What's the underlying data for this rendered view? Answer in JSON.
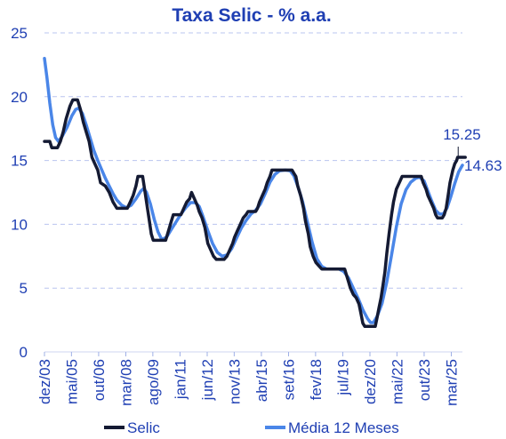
{
  "chart_data": {
    "type": "line",
    "title": "Taxa Selic - % a.a.",
    "ylim": [
      0,
      25
    ],
    "yticks": [
      "0",
      "5",
      "10",
      "15",
      "20",
      "25"
    ],
    "xlim": [
      2003.92,
      2025.75
    ],
    "grid": true,
    "legend_placement": "bottom",
    "x_ticks": [
      {
        "label": "dez/03",
        "x": 2003.92
      },
      {
        "label": "mai/05",
        "x": 2005.33
      },
      {
        "label": "out/06",
        "x": 2006.75
      },
      {
        "label": "mar/08",
        "x": 2008.17
      },
      {
        "label": "ago/09",
        "x": 2009.58
      },
      {
        "label": "jan/11",
        "x": 2011.0
      },
      {
        "label": "jun/12",
        "x": 2012.42
      },
      {
        "label": "nov/13",
        "x": 2013.83
      },
      {
        "label": "abr/15",
        "x": 2015.25
      },
      {
        "label": "set/16",
        "x": 2016.67
      },
      {
        "label": "fev/18",
        "x": 2018.08
      },
      {
        "label": "jul/19",
        "x": 2019.5
      },
      {
        "label": "dez/20",
        "x": 2020.92
      },
      {
        "label": "mai/22",
        "x": 2022.33
      },
      {
        "label": "out/23",
        "x": 2023.75
      },
      {
        "label": "mar/25",
        "x": 2025.17
      }
    ],
    "series": [
      {
        "name": "Selic",
        "color": "#141a33",
        "points": [
          [
            2003.92,
            16.5
          ],
          [
            2004.2,
            16.5
          ],
          [
            2004.3,
            16.0
          ],
          [
            2004.6,
            16.0
          ],
          [
            2004.75,
            16.5
          ],
          [
            2004.9,
            17.25
          ],
          [
            2005.05,
            18.25
          ],
          [
            2005.25,
            19.25
          ],
          [
            2005.4,
            19.75
          ],
          [
            2005.65,
            19.75
          ],
          [
            2005.8,
            19.0
          ],
          [
            2005.95,
            18.0
          ],
          [
            2006.1,
            17.25
          ],
          [
            2006.25,
            16.5
          ],
          [
            2006.4,
            15.25
          ],
          [
            2006.55,
            14.75
          ],
          [
            2006.7,
            14.25
          ],
          [
            2006.85,
            13.25
          ],
          [
            2007.1,
            13.0
          ],
          [
            2007.3,
            12.5
          ],
          [
            2007.5,
            11.75
          ],
          [
            2007.7,
            11.25
          ],
          [
            2008.25,
            11.25
          ],
          [
            2008.4,
            11.75
          ],
          [
            2008.55,
            12.25
          ],
          [
            2008.7,
            13.0
          ],
          [
            2008.8,
            13.75
          ],
          [
            2009.05,
            13.75
          ],
          [
            2009.15,
            12.75
          ],
          [
            2009.3,
            11.25
          ],
          [
            2009.4,
            10.25
          ],
          [
            2009.5,
            9.25
          ],
          [
            2009.6,
            8.75
          ],
          [
            2010.25,
            8.75
          ],
          [
            2010.4,
            9.5
          ],
          [
            2010.55,
            10.25
          ],
          [
            2010.65,
            10.75
          ],
          [
            2011.05,
            10.75
          ],
          [
            2011.2,
            11.25
          ],
          [
            2011.35,
            11.75
          ],
          [
            2011.5,
            12.0
          ],
          [
            2011.6,
            12.5
          ],
          [
            2011.75,
            12.0
          ],
          [
            2011.9,
            11.5
          ],
          [
            2012.0,
            11.0
          ],
          [
            2012.15,
            10.5
          ],
          [
            2012.3,
            9.75
          ],
          [
            2012.45,
            8.5
          ],
          [
            2012.6,
            8.0
          ],
          [
            2012.75,
            7.5
          ],
          [
            2012.9,
            7.25
          ],
          [
            2013.3,
            7.25
          ],
          [
            2013.45,
            7.5
          ],
          [
            2013.6,
            8.0
          ],
          [
            2013.75,
            8.5
          ],
          [
            2013.85,
            9.0
          ],
          [
            2014.0,
            9.5
          ],
          [
            2014.15,
            10.0
          ],
          [
            2014.3,
            10.5
          ],
          [
            2014.45,
            10.75
          ],
          [
            2014.55,
            11.0
          ],
          [
            2014.95,
            11.0
          ],
          [
            2015.05,
            11.25
          ],
          [
            2015.15,
            11.75
          ],
          [
            2015.3,
            12.25
          ],
          [
            2015.45,
            12.75
          ],
          [
            2015.55,
            13.25
          ],
          [
            2015.7,
            13.75
          ],
          [
            2015.8,
            14.25
          ],
          [
            2016.85,
            14.25
          ],
          [
            2016.95,
            14.0
          ],
          [
            2017.05,
            13.75
          ],
          [
            2017.15,
            13.0
          ],
          [
            2017.3,
            12.25
          ],
          [
            2017.45,
            11.25
          ],
          [
            2017.55,
            10.25
          ],
          [
            2017.7,
            9.25
          ],
          [
            2017.8,
            8.25
          ],
          [
            2017.95,
            7.5
          ],
          [
            2018.1,
            7.0
          ],
          [
            2018.25,
            6.75
          ],
          [
            2018.4,
            6.5
          ],
          [
            2019.6,
            6.5
          ],
          [
            2019.7,
            6.0
          ],
          [
            2019.8,
            5.5
          ],
          [
            2019.9,
            5.0
          ],
          [
            2020.05,
            4.5
          ],
          [
            2020.2,
            4.25
          ],
          [
            2020.35,
            3.75
          ],
          [
            2020.45,
            3.0
          ],
          [
            2020.55,
            2.25
          ],
          [
            2020.65,
            2.0
          ],
          [
            2021.2,
            2.0
          ],
          [
            2021.3,
            2.75
          ],
          [
            2021.4,
            3.5
          ],
          [
            2021.5,
            4.25
          ],
          [
            2021.6,
            5.25
          ],
          [
            2021.7,
            6.25
          ],
          [
            2021.8,
            7.75
          ],
          [
            2021.92,
            9.25
          ],
          [
            2022.05,
            10.75
          ],
          [
            2022.15,
            11.75
          ],
          [
            2022.3,
            12.75
          ],
          [
            2022.45,
            13.25
          ],
          [
            2022.6,
            13.75
          ],
          [
            2023.6,
            13.75
          ],
          [
            2023.7,
            13.25
          ],
          [
            2023.85,
            12.75
          ],
          [
            2023.95,
            12.25
          ],
          [
            2024.1,
            11.75
          ],
          [
            2024.25,
            11.25
          ],
          [
            2024.35,
            10.75
          ],
          [
            2024.45,
            10.5
          ],
          [
            2024.7,
            10.5
          ],
          [
            2024.8,
            10.75
          ],
          [
            2024.9,
            11.25
          ],
          [
            2025.0,
            12.25
          ],
          [
            2025.1,
            13.25
          ],
          [
            2025.25,
            14.25
          ],
          [
            2025.35,
            14.75
          ],
          [
            2025.45,
            15.0
          ],
          [
            2025.5,
            15.25
          ],
          [
            2025.9,
            15.25
          ]
        ]
      },
      {
        "name": "Média 12 Meses",
        "color": "#4a86e8",
        "points": [
          [
            2003.92,
            23.0
          ],
          [
            2004.05,
            21.5
          ],
          [
            2004.2,
            19.5
          ],
          [
            2004.35,
            17.8
          ],
          [
            2004.5,
            16.8
          ],
          [
            2004.65,
            16.5
          ],
          [
            2004.85,
            16.9
          ],
          [
            2005.1,
            17.6
          ],
          [
            2005.35,
            18.5
          ],
          [
            2005.55,
            19.0
          ],
          [
            2005.7,
            19.1
          ],
          [
            2005.9,
            18.7
          ],
          [
            2006.1,
            17.8
          ],
          [
            2006.3,
            16.8
          ],
          [
            2006.5,
            15.8
          ],
          [
            2006.7,
            15.0
          ],
          [
            2006.9,
            14.3
          ],
          [
            2007.1,
            13.6
          ],
          [
            2007.3,
            13.0
          ],
          [
            2007.5,
            12.4
          ],
          [
            2007.7,
            11.9
          ],
          [
            2007.95,
            11.5
          ],
          [
            2008.2,
            11.3
          ],
          [
            2008.45,
            11.5
          ],
          [
            2008.7,
            12.0
          ],
          [
            2008.95,
            12.6
          ],
          [
            2009.1,
            12.8
          ],
          [
            2009.25,
            12.5
          ],
          [
            2009.45,
            11.6
          ],
          [
            2009.65,
            10.4
          ],
          [
            2009.85,
            9.4
          ],
          [
            2010.05,
            8.8
          ],
          [
            2010.3,
            9.0
          ],
          [
            2010.55,
            9.6
          ],
          [
            2010.8,
            10.2
          ],
          [
            2011.05,
            10.8
          ],
          [
            2011.3,
            11.3
          ],
          [
            2011.55,
            11.7
          ],
          [
            2011.8,
            11.7
          ],
          [
            2012.0,
            11.4
          ],
          [
            2012.2,
            10.6
          ],
          [
            2012.45,
            9.5
          ],
          [
            2012.7,
            8.5
          ],
          [
            2012.95,
            7.8
          ],
          [
            2013.2,
            7.5
          ],
          [
            2013.45,
            7.6
          ],
          [
            2013.7,
            8.1
          ],
          [
            2013.95,
            8.9
          ],
          [
            2014.2,
            9.7
          ],
          [
            2014.45,
            10.3
          ],
          [
            2014.7,
            10.8
          ],
          [
            2014.95,
            11.1
          ],
          [
            2015.2,
            11.6
          ],
          [
            2015.45,
            12.4
          ],
          [
            2015.7,
            13.3
          ],
          [
            2015.95,
            13.9
          ],
          [
            2016.2,
            14.2
          ],
          [
            2016.5,
            14.25
          ],
          [
            2016.75,
            14.2
          ],
          [
            2016.95,
            13.8
          ],
          [
            2017.15,
            13.0
          ],
          [
            2017.4,
            11.8
          ],
          [
            2017.65,
            10.2
          ],
          [
            2017.9,
            8.6
          ],
          [
            2018.15,
            7.3
          ],
          [
            2018.4,
            6.7
          ],
          [
            2018.65,
            6.5
          ],
          [
            2019.3,
            6.5
          ],
          [
            2019.55,
            6.3
          ],
          [
            2019.8,
            5.8
          ],
          [
            2020.05,
            5.0
          ],
          [
            2020.3,
            4.2
          ],
          [
            2020.55,
            3.3
          ],
          [
            2020.8,
            2.6
          ],
          [
            2020.95,
            2.3
          ],
          [
            2021.1,
            2.3
          ],
          [
            2021.3,
            2.8
          ],
          [
            2021.55,
            3.8
          ],
          [
            2021.8,
            5.5
          ],
          [
            2022.05,
            7.6
          ],
          [
            2022.3,
            9.8
          ],
          [
            2022.55,
            11.6
          ],
          [
            2022.8,
            12.7
          ],
          [
            2023.05,
            13.3
          ],
          [
            2023.3,
            13.6
          ],
          [
            2023.5,
            13.7
          ],
          [
            2023.75,
            13.4
          ],
          [
            2023.95,
            12.6
          ],
          [
            2024.15,
            11.8
          ],
          [
            2024.35,
            11.1
          ],
          [
            2024.55,
            10.8
          ],
          [
            2024.75,
            10.8
          ],
          [
            2024.95,
            11.3
          ],
          [
            2025.15,
            12.2
          ],
          [
            2025.35,
            13.2
          ],
          [
            2025.55,
            14.1
          ],
          [
            2025.75,
            14.63
          ]
        ]
      }
    ],
    "annotations": [
      {
        "text": "15.25",
        "series": "Selic",
        "x": 2025.9,
        "y": 15.25
      },
      {
        "text": "14.63",
        "series": "Média 12 Meses",
        "x": 2025.75,
        "y": 14.63
      }
    ]
  }
}
